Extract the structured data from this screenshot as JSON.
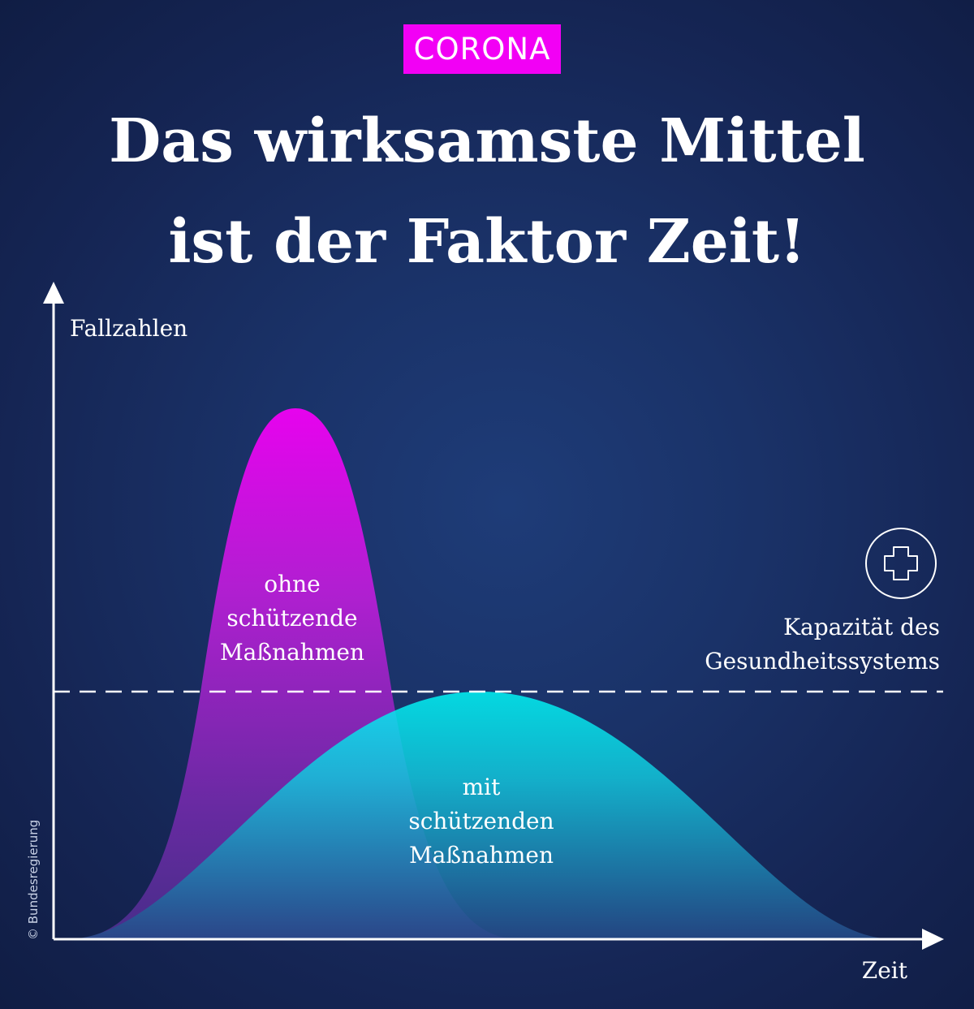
{
  "tag": "CORONA",
  "headline": {
    "line1": "Das wirksamste Mittel",
    "line2": "ist der Faktor Zeit!"
  },
  "axes": {
    "y_label": "Fallzahlen",
    "x_label": "Zeit"
  },
  "curves": {
    "without_measures": [
      "ohne",
      "schützende",
      "Maßnahmen"
    ],
    "with_measures": [
      "mit",
      "schützenden",
      "Maßnahmen"
    ]
  },
  "capacity": {
    "icon": "medical-cross-icon",
    "lines": [
      "Kapazität des",
      "Gesundheitssystems"
    ]
  },
  "copyright": "© Bundesregierung",
  "colors": {
    "magenta": "#f200f5",
    "cyan": "#00f5f5",
    "axis": "#ffffff",
    "background": "#152554"
  }
}
